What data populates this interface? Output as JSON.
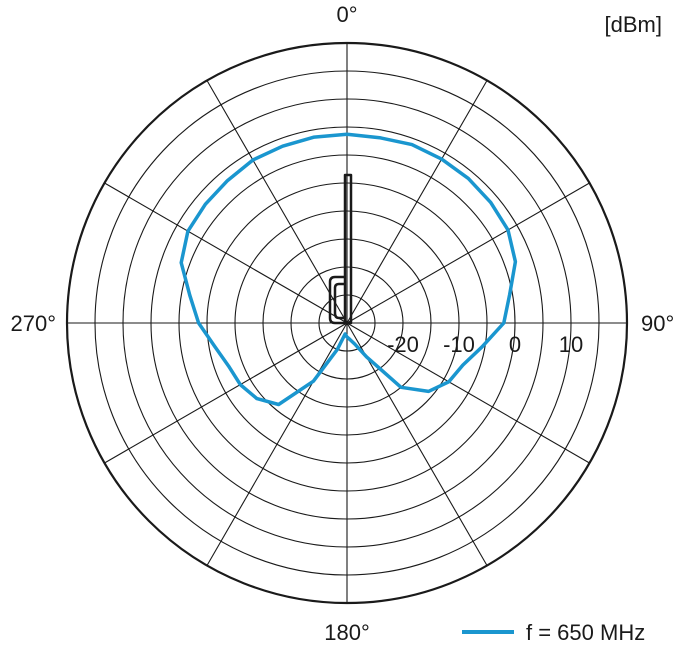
{
  "chart_data": {
    "type": "polar",
    "unit_label": "[dBm]",
    "angle_labels": [
      {
        "deg": 0,
        "text": "0°"
      },
      {
        "deg": 90,
        "text": "90°"
      },
      {
        "deg": 180,
        "text": "180°"
      },
      {
        "deg": 270,
        "text": "270°"
      }
    ],
    "radial_range": [
      -30,
      20
    ],
    "radial_rings": [
      -20,
      -10,
      0,
      10
    ],
    "radial_tick_labels": [
      {
        "value": -20,
        "text": "-20"
      },
      {
        "value": -10,
        "text": "-10"
      },
      {
        "value": 0,
        "text": "0"
      },
      {
        "value": 10,
        "text": "10"
      }
    ],
    "grid_ring_step": 5,
    "spoke_step_deg": 30,
    "colors": {
      "series": "#1a96cf",
      "grid": "#1a1a1a"
    },
    "legend": {
      "placement": "bottom-right"
    },
    "series": [
      {
        "name": "f = 650 MHz",
        "angles_deg": [
          0,
          10,
          20,
          30,
          40,
          50,
          60,
          70,
          80,
          90,
          100,
          110,
          120,
          130,
          140,
          150,
          160,
          170,
          180,
          190,
          200,
          210,
          220,
          230,
          240,
          250,
          260,
          270,
          280,
          290,
          300,
          310,
          320,
          330,
          340,
          350
        ],
        "values": [
          3.7,
          3.6,
          3.9,
          3.8,
          3.7,
          3.5,
          3.2,
          2.0,
          -0.5,
          -2.0,
          -5.5,
          -8.0,
          -9.0,
          -11.0,
          -15.0,
          -23.0,
          -26.0,
          -27.0,
          -27.5,
          -28.0,
          -25.0,
          -18.0,
          -11.0,
          -9.0,
          -8.0,
          -7.5,
          -6.0,
          -3.5,
          -1.5,
          1.5,
          2.8,
          3.0,
          3.2,
          3.6,
          3.6,
          3.7
        ]
      }
    ]
  }
}
